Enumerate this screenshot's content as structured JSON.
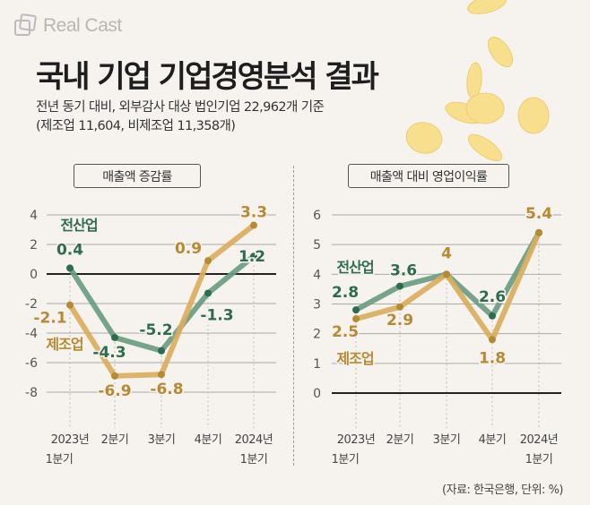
{
  "brand": "Real Cast",
  "title": "국내 기업 기업경영분석 결과",
  "subtitle_line1": "전년 동기 대비, 외부감사 대상 법인기업 22,962개 기준",
  "subtitle_line2": "(제조업 11,604, 비제조업 11,358개)",
  "source": "(자료: 한국은행, 단위: %)",
  "colors": {
    "all_industry": "#6a9d82",
    "all_industry_label": "#2f6b4d",
    "manufacturing": "#d9ae5c",
    "manufacturing_label": "#b68a33"
  },
  "chart_data": [
    {
      "type": "line",
      "title": "매출액 증감률",
      "categories": [
        [
          "2023년",
          "1분기"
        ],
        [
          "2분기"
        ],
        [
          "3분기"
        ],
        [
          "4분기"
        ],
        [
          "2024년",
          "1분기"
        ]
      ],
      "ylim": [
        -8,
        4
      ],
      "yticks": [
        "4",
        "2",
        "0",
        "-2",
        "-4",
        "-6",
        "-8"
      ],
      "series": [
        {
          "name": "전산업",
          "values": [
            0.4,
            -4.3,
            -5.2,
            -1.3,
            1.2
          ],
          "labels": [
            "0.4",
            "-4.3",
            "-5.2",
            "-1.3",
            "1.2"
          ]
        },
        {
          "name": "제조업",
          "values": [
            -2.1,
            -6.9,
            -6.8,
            0.9,
            3.3
          ],
          "labels": [
            "-2.1",
            "-6.9",
            "-6.8",
            "0.9",
            "3.3"
          ]
        }
      ]
    },
    {
      "type": "line",
      "title": "매출액 대비 영업이익률",
      "categories": [
        [
          "2023년",
          "1분기"
        ],
        [
          "2분기"
        ],
        [
          "3분기"
        ],
        [
          "4분기"
        ],
        [
          "2024년",
          "1분기"
        ]
      ],
      "ylim": [
        0,
        6
      ],
      "yticks": [
        "6",
        "5",
        "4",
        "3",
        "2",
        "1",
        "0"
      ],
      "series": [
        {
          "name": "전산업",
          "values": [
            2.8,
            3.6,
            4.0,
            2.6,
            5.4
          ],
          "labels": [
            "2.8",
            "3.6",
            "",
            "2.6",
            ""
          ]
        },
        {
          "name": "제조업",
          "values": [
            2.5,
            2.9,
            4.0,
            1.8,
            5.4
          ],
          "labels": [
            "2.5",
            "2.9",
            "4",
            "1.8",
            "5.4"
          ]
        }
      ]
    }
  ]
}
